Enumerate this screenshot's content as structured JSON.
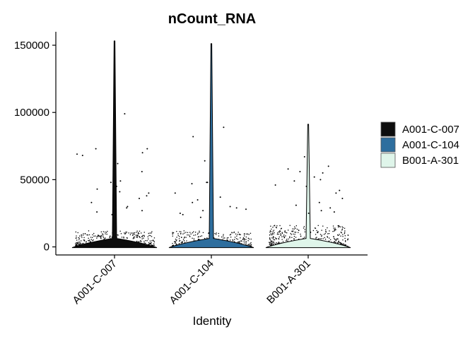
{
  "chart_data": {
    "type": "violin",
    "title": "nCount_RNA",
    "xlabel": "Identity",
    "ylabel": "",
    "categories": [
      "A001-C-007",
      "A001-C-104",
      "B001-A-301"
    ],
    "ylim": [
      -6000,
      160000
    ],
    "yticks": [
      0,
      50000,
      100000,
      150000
    ],
    "ytick_labels": [
      "0",
      "50000",
      "100000",
      "150000"
    ],
    "grid": false,
    "legend": {
      "position": "right",
      "entries": [
        {
          "label": "A001-C-007",
          "color": "#0d0d0d"
        },
        {
          "label": "A001-C-104",
          "color": "#2e6e9e"
        },
        {
          "label": "B001-A-301",
          "color": "#dff5ea"
        }
      ]
    },
    "series": [
      {
        "category": "A001-C-007",
        "max": 153000,
        "outliers": [
          153000,
          99000,
          73000,
          73000,
          70000,
          69000,
          68000,
          62000,
          56000,
          49000,
          48000,
          45000,
          43000,
          41000,
          40000,
          38000,
          36000,
          33000,
          30000,
          29000,
          27000,
          26000,
          24000
        ]
      },
      {
        "category": "A001-C-104",
        "max": 151000,
        "outliers": [
          151000,
          89000,
          82000,
          64000,
          48000,
          48000,
          47000,
          40000,
          37000,
          35000,
          33000,
          30000,
          29000,
          28000,
          27000,
          25000,
          24000,
          22000
        ]
      },
      {
        "category": "B001-A-301",
        "max": 91000,
        "outliers": [
          91000,
          67000,
          60000,
          58000,
          56000,
          55000,
          52000,
          50000,
          49000,
          46000,
          45000,
          42000,
          40000,
          36000,
          33000,
          31000,
          29000,
          27000,
          26000,
          25000
        ]
      }
    ]
  }
}
